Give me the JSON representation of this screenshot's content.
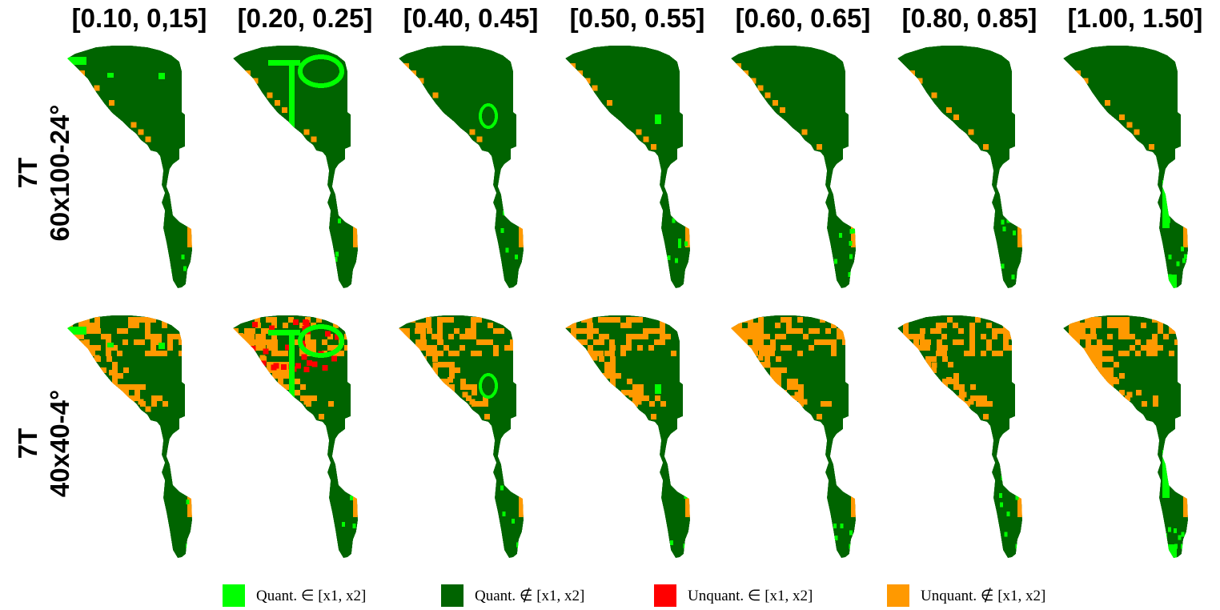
{
  "columns": [
    "[0.10, 0,15]",
    "[0.20, 0.25]",
    "[0.40, 0.45]",
    "[0.50, 0.55]",
    "[0.60, 0.65]",
    "[0.80, 0.85]",
    "[1.00, 1.50]"
  ],
  "rows": [
    {
      "line1": "7T",
      "line2": "60x100-24°"
    },
    {
      "line1": "7T",
      "line2": "40x40-4°"
    }
  ],
  "legend": [
    {
      "label": "Quant. ∈ [x1, x2]",
      "color": "#00ff00"
    },
    {
      "label": "Quant. ∉ [x1, x2]",
      "color": "#006400"
    },
    {
      "label": "Unquant. ∈ [x1, x2]",
      "color": "#ff0000"
    },
    {
      "label": "Unquant. ∉ [x1, x2]",
      "color": "#ff9900"
    }
  ],
  "colors": {
    "quant_in": "#00ff00",
    "quant_out": "#006400",
    "unquant_in": "#ff0000",
    "unquant_out": "#ff9900"
  }
}
